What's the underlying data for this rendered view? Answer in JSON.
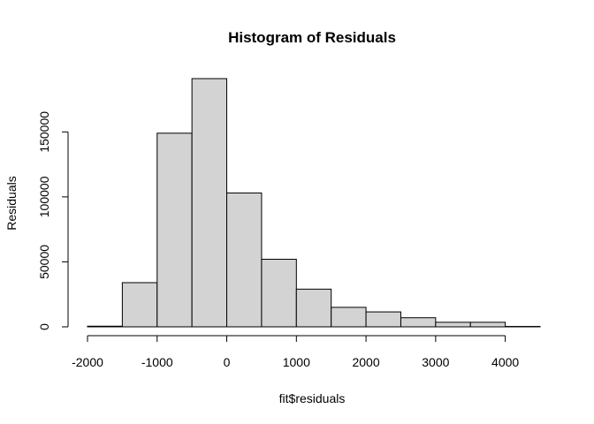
{
  "chart_data": {
    "type": "bar",
    "title": "Histogram of Residuals",
    "xlabel": "fit$residuals",
    "ylabel": "Residuals",
    "bar_color": "#d3d3d3",
    "bins": [
      {
        "start": -2000,
        "end": -1500,
        "count": 500
      },
      {
        "start": -1500,
        "end": -1000,
        "count": 34000
      },
      {
        "start": -1000,
        "end": -500,
        "count": 149000
      },
      {
        "start": -500,
        "end": 0,
        "count": 191000
      },
      {
        "start": 0,
        "end": 500,
        "count": 103000
      },
      {
        "start": 500,
        "end": 1000,
        "count": 52000
      },
      {
        "start": 1000,
        "end": 1500,
        "count": 29000
      },
      {
        "start": 1500,
        "end": 2000,
        "count": 15000
      },
      {
        "start": 2000,
        "end": 2500,
        "count": 11500
      },
      {
        "start": 2500,
        "end": 3000,
        "count": 7000
      },
      {
        "start": 3000,
        "end": 3500,
        "count": 3500
      },
      {
        "start": 3500,
        "end": 4000,
        "count": 3500
      },
      {
        "start": 4000,
        "end": 4500,
        "count": 300
      }
    ],
    "xlim": [
      -2000,
      4500
    ],
    "ylim": [
      0,
      191000
    ],
    "x_ticks": [
      -2000,
      -1000,
      0,
      1000,
      2000,
      3000,
      4000
    ],
    "x_tick_labels": [
      "-2000",
      "-1000",
      "0",
      "1000",
      "2000",
      "3000",
      "4000"
    ],
    "y_ticks": [
      0,
      50000,
      100000,
      150000
    ],
    "y_tick_labels": [
      "0",
      "50000",
      "100000",
      "150000"
    ],
    "grid": false,
    "legend": "none"
  }
}
